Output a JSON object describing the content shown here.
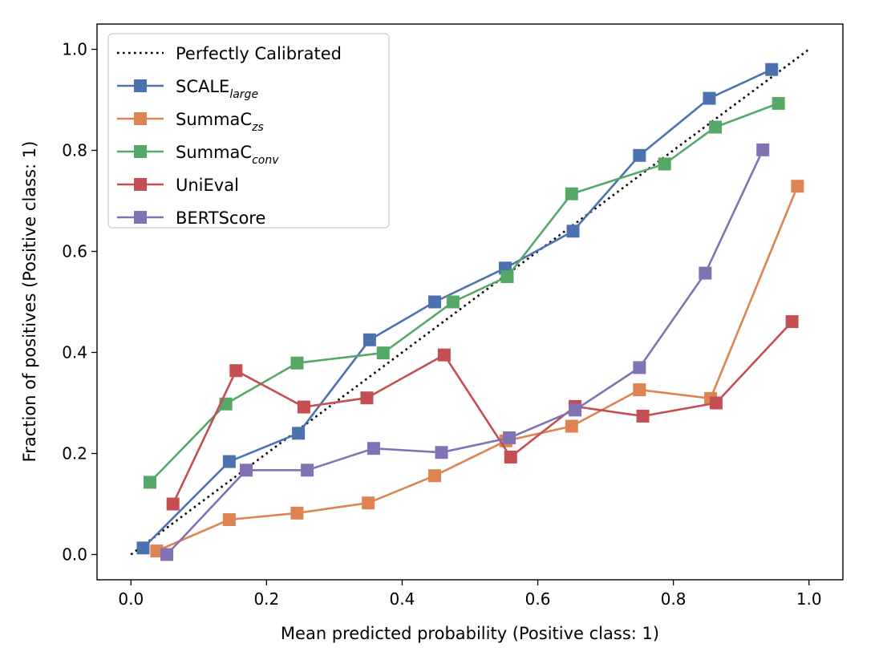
{
  "chart_data": {
    "type": "line",
    "title": "",
    "xlabel": "Mean predicted probability (Positive class: 1)",
    "ylabel": "Fraction of positives (Positive class: 1)",
    "xlim": [
      -0.05,
      1.05
    ],
    "ylim": [
      -0.05,
      1.05
    ],
    "xticks": [
      "0.0",
      "0.2",
      "0.4",
      "0.6",
      "0.8",
      "1.0"
    ],
    "yticks": [
      "0.0",
      "0.2",
      "0.4",
      "0.6",
      "0.8",
      "1.0"
    ],
    "grid": false,
    "legend_position": "upper-left",
    "reference_line": {
      "name": "Perfectly Calibrated",
      "x": [
        0,
        1
      ],
      "y": [
        0,
        1
      ],
      "style": "dotted",
      "color": "#000000"
    },
    "series": [
      {
        "name": "SCALE",
        "name_subscript": "large",
        "color": "#4c72b0",
        "x": [
          0.018,
          0.145,
          0.247,
          0.352,
          0.448,
          0.552,
          0.652,
          0.75,
          0.853,
          0.945
        ],
        "y": [
          0.013,
          0.184,
          0.24,
          0.425,
          0.5,
          0.567,
          0.64,
          0.79,
          0.903,
          0.96
        ]
      },
      {
        "name": "SummaC",
        "name_subscript": "zs",
        "color": "#dd8452",
        "x": [
          0.038,
          0.145,
          0.245,
          0.35,
          0.448,
          0.553,
          0.65,
          0.75,
          0.855,
          0.983
        ],
        "y": [
          0.007,
          0.069,
          0.082,
          0.102,
          0.156,
          0.225,
          0.254,
          0.326,
          0.309,
          0.729
        ]
      },
      {
        "name": "SummaC",
        "name_subscript": "conv",
        "color": "#55a868",
        "x": [
          0.028,
          0.14,
          0.245,
          0.372,
          0.475,
          0.555,
          0.65,
          0.787,
          0.862,
          0.955
        ],
        "y": [
          0.143,
          0.298,
          0.379,
          0.399,
          0.5,
          0.55,
          0.714,
          0.773,
          0.846,
          0.893
        ]
      },
      {
        "name": "UniEval",
        "name_subscript": "",
        "color": "#c44e52",
        "x": [
          0.062,
          0.155,
          0.255,
          0.348,
          0.462,
          0.56,
          0.655,
          0.755,
          0.863,
          0.975
        ],
        "y": [
          0.1,
          0.364,
          0.292,
          0.31,
          0.395,
          0.193,
          0.293,
          0.274,
          0.3,
          0.461
        ]
      },
      {
        "name": "BERTScore",
        "name_subscript": "",
        "color": "#8172b3",
        "x": [
          0.053,
          0.17,
          0.26,
          0.358,
          0.458,
          0.558,
          0.655,
          0.75,
          0.847,
          0.932
        ],
        "y": [
          0.0,
          0.167,
          0.167,
          0.21,
          0.202,
          0.231,
          0.286,
          0.37,
          0.557,
          0.801
        ]
      }
    ]
  }
}
